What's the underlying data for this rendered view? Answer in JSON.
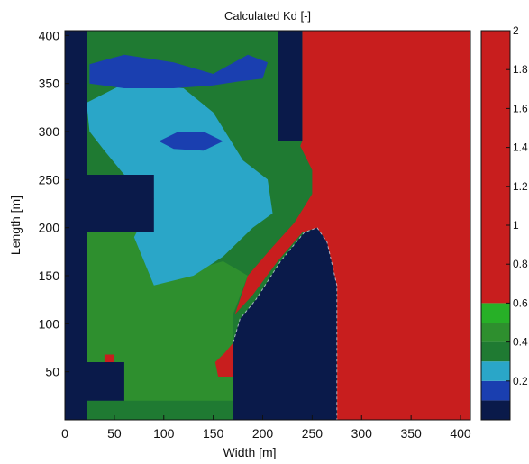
{
  "chart_data": {
    "type": "heatmap",
    "title": "Calculated Kd [-]",
    "xlabel": "Width [m]",
    "ylabel": "Length [m]",
    "xlim": [
      0,
      410
    ],
    "ylim": [
      0,
      405
    ],
    "x_ticks": [
      0,
      50,
      100,
      150,
      200,
      250,
      300,
      350,
      400
    ],
    "y_ticks": [
      50,
      100,
      150,
      200,
      250,
      300,
      350,
      400
    ],
    "colorbar": {
      "range": [
        0,
        2
      ],
      "tick_labels": [
        "2",
        "1.8",
        "1.6",
        "1.4",
        "1.2",
        "1",
        "0.8",
        "0.6",
        "0.4",
        "0.2"
      ],
      "tick_values": [
        2,
        1.8,
        1.6,
        1.4,
        1.2,
        1,
        0.8,
        0.6,
        0.4,
        0.2
      ],
      "bands": [
        {
          "from": 0.0,
          "to": 0.1,
          "color": "#0a1a4a"
        },
        {
          "from": 0.1,
          "to": 0.2,
          "color": "#1a3fb0"
        },
        {
          "from": 0.2,
          "to": 0.3,
          "color": "#2aa6c8"
        },
        {
          "from": 0.3,
          "to": 0.4,
          "color": "#1f7a32"
        },
        {
          "from": 0.4,
          "to": 0.5,
          "color": "#2e8f2e"
        },
        {
          "from": 0.5,
          "to": 0.6,
          "color": "#27b027"
        },
        {
          "from": 0.6,
          "to": 2.0,
          "color": "#c81e1e"
        }
      ]
    },
    "regions": [
      {
        "name": "left-breakwater",
        "value": 0.0,
        "polygon": [
          [
            0,
            0
          ],
          [
            22,
            0
          ],
          [
            22,
            20
          ],
          [
            60,
            20
          ],
          [
            60,
            60
          ],
          [
            22,
            60
          ],
          [
            22,
            195
          ],
          [
            90,
            195
          ],
          [
            90,
            255
          ],
          [
            22,
            255
          ],
          [
            22,
            405
          ],
          [
            0,
            405
          ]
        ]
      },
      {
        "name": "upper-jetty",
        "value": 0.0,
        "polygon": [
          [
            215,
            290
          ],
          [
            240,
            290
          ],
          [
            240,
            405
          ],
          [
            215,
            405
          ]
        ]
      },
      {
        "name": "central-island",
        "value": 0.0,
        "polygon": [
          [
            170,
            0
          ],
          [
            275,
            0
          ],
          [
            275,
            140
          ],
          [
            265,
            185
          ],
          [
            255,
            200
          ],
          [
            242,
            195
          ],
          [
            218,
            165
          ],
          [
            193,
            125
          ],
          [
            177,
            105
          ],
          [
            170,
            80
          ]
        ]
      },
      {
        "name": "red-wake-zone",
        "value": 1.5,
        "polygon": [
          [
            240,
            405
          ],
          [
            410,
            405
          ],
          [
            410,
            0
          ],
          [
            275,
            0
          ],
          [
            275,
            140
          ],
          [
            265,
            185
          ],
          [
            255,
            200
          ],
          [
            240,
            195
          ],
          [
            215,
            165
          ],
          [
            190,
            130
          ],
          [
            172,
            110
          ],
          [
            185,
            150
          ],
          [
            210,
            180
          ],
          [
            232,
            205
          ],
          [
            250,
            235
          ],
          [
            250,
            260
          ],
          [
            238,
            285
          ],
          [
            240,
            290
          ],
          [
            240,
            405
          ]
        ]
      },
      {
        "name": "red-small-patch",
        "value": 0.8,
        "polygon": [
          [
            155,
            45
          ],
          [
            170,
            45
          ],
          [
            170,
            80
          ],
          [
            162,
            70
          ],
          [
            152,
            60
          ]
        ]
      },
      {
        "name": "red-dot",
        "value": 0.7,
        "polygon": [
          [
            40,
            60
          ],
          [
            50,
            60
          ],
          [
            50,
            68
          ],
          [
            40,
            68
          ]
        ]
      },
      {
        "name": "light-blue-zone",
        "value": 0.25,
        "polygon": [
          [
            22,
            330
          ],
          [
            60,
            350
          ],
          [
            120,
            345
          ],
          [
            150,
            320
          ],
          [
            180,
            270
          ],
          [
            205,
            250
          ],
          [
            210,
            215
          ],
          [
            190,
            200
          ],
          [
            160,
            170
          ],
          [
            130,
            150
          ],
          [
            90,
            140
          ],
          [
            70,
            190
          ],
          [
            90,
            230
          ],
          [
            60,
            255
          ],
          [
            40,
            280
          ],
          [
            25,
            300
          ]
        ]
      },
      {
        "name": "dark-blue-lobe-top",
        "value": 0.15,
        "polygon": [
          [
            25,
            370
          ],
          [
            60,
            380
          ],
          [
            110,
            372
          ],
          [
            150,
            360
          ],
          [
            185,
            380
          ],
          [
            205,
            372
          ],
          [
            200,
            355
          ],
          [
            175,
            352
          ],
          [
            150,
            348
          ],
          [
            110,
            345
          ],
          [
            60,
            345
          ],
          [
            25,
            350
          ]
        ]
      },
      {
        "name": "dark-blue-lobe-mid",
        "value": 0.15,
        "polygon": [
          [
            95,
            290
          ],
          [
            115,
            300
          ],
          [
            140,
            300
          ],
          [
            160,
            290
          ],
          [
            140,
            280
          ],
          [
            110,
            282
          ]
        ]
      },
      {
        "name": "green-lower",
        "value": 0.45,
        "polygon": [
          [
            22,
            20
          ],
          [
            170,
            20
          ],
          [
            170,
            110
          ],
          [
            185,
            150
          ],
          [
            160,
            165
          ],
          [
            110,
            150
          ],
          [
            90,
            140
          ],
          [
            70,
            190
          ],
          [
            90,
            195
          ],
          [
            90,
            255
          ],
          [
            22,
            255
          ],
          [
            22,
            195
          ],
          [
            22,
            60
          ],
          [
            60,
            60
          ],
          [
            60,
            20
          ]
        ]
      }
    ]
  }
}
